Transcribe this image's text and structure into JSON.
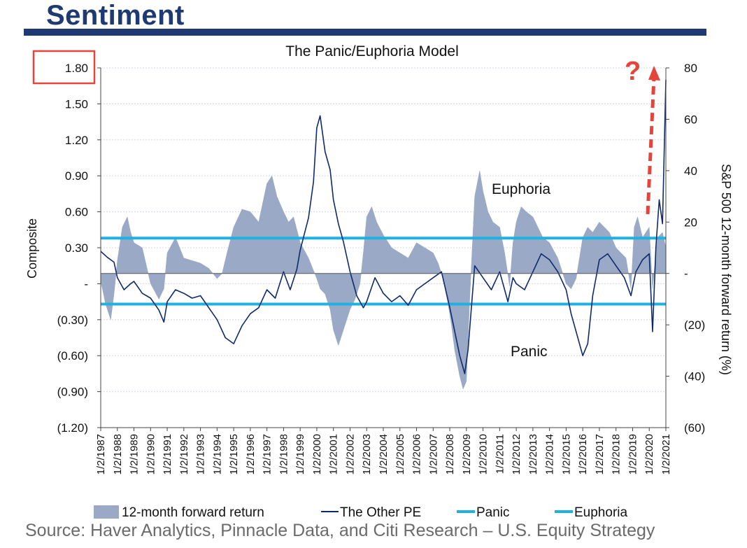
{
  "header": {
    "title": "Sentiment"
  },
  "source_note": "Source: Haver Analytics, Pinnacle Data, and Citi Research – U.S. Equity Strategy",
  "chart_data": {
    "type": "line",
    "title": "The Panic/Euphoria Model",
    "ylabel_left": "Composite",
    "ylabel_right": "S&P 500 12-month forward return (%)",
    "ylim_left": [
      -1.2,
      1.8
    ],
    "ylim_right": [
      -60,
      80
    ],
    "yticks_left": [
      "(1.20)",
      "(0.90)",
      "(0.60)",
      "(0.30)",
      "-",
      "0.30",
      "0.60",
      "0.90",
      "1.20",
      "1.50",
      "1.80"
    ],
    "yticks_right": [
      "(60)",
      "(40)",
      "(20)",
      "-",
      "20",
      "40",
      "60",
      "80"
    ],
    "xticks": [
      "1/2/1987",
      "1/2/1988",
      "1/2/1989",
      "1/2/1990",
      "1/2/1991",
      "1/2/1992",
      "1/2/1993",
      "1/2/1994",
      "1/2/1995",
      "1/2/1996",
      "1/2/1997",
      "1/2/1998",
      "1/2/1999",
      "1/2/2000",
      "1/2/2001",
      "1/2/2002",
      "1/2/2003",
      "1/2/2004",
      "1/2/2005",
      "1/2/2006",
      "1/2/2007",
      "1/2/2008",
      "1/2/2009",
      "1/2/2010",
      "1/2/2011",
      "1/2/2012",
      "1/2/2013",
      "1/2/2014",
      "1/2/2015",
      "1/2/2016",
      "1/2/2017",
      "1/2/2018",
      "1/2/2019",
      "1/2/2020",
      "1/2/2021"
    ],
    "thresholds": {
      "panic": -0.17,
      "euphoria": 0.38
    },
    "annotations": {
      "euphoria_label": "Euphoria",
      "panic_label": "Panic",
      "question_mark": "?"
    },
    "colors": {
      "forward_return": "#9aa9c6",
      "other_pe": "#0f2a6b",
      "panic": "#1fb2e0",
      "euphoria": "#1fb2e0",
      "heading": "#1f3a73",
      "highlight_box": "#e5443b",
      "arrow": "#e5443b"
    },
    "series": [
      {
        "name": "12-month forward return",
        "kind": "area",
        "axis": "right",
        "x": [
          1987.0,
          1987.3,
          1987.6,
          1987.8,
          1988.0,
          1988.3,
          1988.6,
          1988.8,
          1989.0,
          1989.5,
          1990.0,
          1990.5,
          1990.8,
          1991.0,
          1991.5,
          1992.0,
          1992.5,
          1993.0,
          1993.5,
          1994.0,
          1994.3,
          1994.6,
          1995.0,
          1995.5,
          1996.0,
          1996.5,
          1997.0,
          1997.3,
          1997.6,
          1998.0,
          1998.3,
          1998.6,
          1999.0,
          1999.5,
          2000.0,
          2000.2,
          2000.5,
          2000.8,
          2001.0,
          2001.3,
          2001.5,
          2001.8,
          2002.0,
          2002.3,
          2002.6,
          2002.8,
          2003.0,
          2003.3,
          2003.6,
          2004.0,
          2004.5,
          2005.0,
          2005.5,
          2006.0,
          2006.5,
          2007.0,
          2007.3,
          2007.6,
          2007.9,
          2008.1,
          2008.3,
          2008.6,
          2008.8,
          2009.0,
          2009.2,
          2009.5,
          2009.8,
          2010.0,
          2010.3,
          2010.6,
          2011.0,
          2011.3,
          2011.6,
          2011.8,
          2012.0,
          2012.3,
          2012.6,
          2013.0,
          2013.3,
          2013.6,
          2014.0,
          2014.5,
          2015.0,
          2015.3,
          2015.6,
          2016.0,
          2016.3,
          2016.6,
          2017.0,
          2017.3,
          2017.6,
          2018.0,
          2018.3,
          2018.6,
          2018.9,
          2019.1,
          2019.3,
          2019.6,
          2020.0,
          2020.2,
          2020.5,
          2020.8,
          2021.0
        ],
        "values": [
          -3,
          -12,
          -18,
          -8,
          5,
          18,
          22,
          16,
          12,
          10,
          -4,
          -10,
          -6,
          8,
          14,
          6,
          5,
          4,
          2,
          -2,
          0,
          8,
          18,
          25,
          24,
          20,
          35,
          38,
          30,
          24,
          20,
          22,
          12,
          6,
          -2,
          -6,
          -8,
          -14,
          -22,
          -28,
          -24,
          -18,
          -14,
          -10,
          -4,
          8,
          22,
          26,
          20,
          15,
          10,
          8,
          6,
          12,
          10,
          8,
          4,
          -2,
          -12,
          -20,
          -30,
          -40,
          -45,
          -42,
          -10,
          30,
          40,
          32,
          24,
          20,
          18,
          8,
          -5,
          12,
          20,
          26,
          24,
          22,
          18,
          14,
          12,
          6,
          -4,
          -6,
          -2,
          14,
          18,
          16,
          20,
          18,
          16,
          10,
          8,
          6,
          -6,
          18,
          22,
          14,
          18,
          -6,
          14,
          16,
          10
        ]
      },
      {
        "name": "The Other PE",
        "kind": "line",
        "axis": "left",
        "x": [
          1987.0,
          1987.4,
          1987.8,
          1988.0,
          1988.4,
          1988.8,
          1989.0,
          1989.5,
          1990.0,
          1990.5,
          1990.8,
          1991.0,
          1991.5,
          1992.0,
          1992.5,
          1993.0,
          1993.5,
          1994.0,
          1994.5,
          1995.0,
          1995.5,
          1996.0,
          1996.5,
          1997.0,
          1997.5,
          1998.0,
          1998.4,
          1998.8,
          1999.0,
          1999.5,
          1999.8,
          2000.0,
          2000.2,
          2000.5,
          2000.8,
          2001.0,
          2001.3,
          2001.6,
          2002.0,
          2002.4,
          2002.8,
          2003.0,
          2003.5,
          2004.0,
          2004.5,
          2005.0,
          2005.5,
          2006.0,
          2006.5,
          2007.0,
          2007.5,
          2008.0,
          2008.3,
          2008.6,
          2008.9,
          2009.1,
          2009.5,
          2010.0,
          2010.5,
          2011.0,
          2011.5,
          2011.8,
          2012.0,
          2012.5,
          2013.0,
          2013.5,
          2014.0,
          2014.5,
          2015.0,
          2015.3,
          2015.6,
          2016.0,
          2016.3,
          2016.6,
          2017.0,
          2017.5,
          2018.0,
          2018.5,
          2018.9,
          2019.2,
          2019.6,
          2020.0,
          2020.2,
          2020.4,
          2020.6,
          2020.8,
          2021.0
        ],
        "values": [
          0.27,
          0.22,
          0.18,
          0.05,
          -0.05,
          0.0,
          0.02,
          -0.08,
          -0.12,
          -0.22,
          -0.32,
          -0.15,
          -0.05,
          -0.08,
          -0.12,
          -0.1,
          -0.2,
          -0.3,
          -0.45,
          -0.5,
          -0.35,
          -0.25,
          -0.2,
          -0.05,
          -0.12,
          0.1,
          -0.05,
          0.12,
          0.28,
          0.55,
          0.85,
          1.3,
          1.4,
          1.1,
          0.95,
          0.7,
          0.5,
          0.35,
          0.1,
          -0.1,
          -0.2,
          -0.15,
          0.05,
          -0.08,
          -0.15,
          -0.1,
          -0.18,
          -0.05,
          0.0,
          0.05,
          0.1,
          -0.2,
          -0.4,
          -0.6,
          -0.75,
          -0.55,
          0.15,
          0.05,
          -0.05,
          0.1,
          -0.15,
          0.05,
          0.0,
          -0.05,
          0.1,
          0.25,
          0.2,
          0.1,
          -0.05,
          -0.25,
          -0.4,
          -0.6,
          -0.5,
          -0.1,
          0.2,
          0.25,
          0.15,
          0.05,
          -0.1,
          0.1,
          0.2,
          0.25,
          -0.4,
          0.3,
          0.7,
          0.5,
          1.7
        ]
      },
      {
        "name": "Panic",
        "kind": "hline",
        "axis": "left",
        "value": -0.17
      },
      {
        "name": "Euphoria",
        "kind": "hline",
        "axis": "left",
        "value": 0.38
      }
    ]
  }
}
